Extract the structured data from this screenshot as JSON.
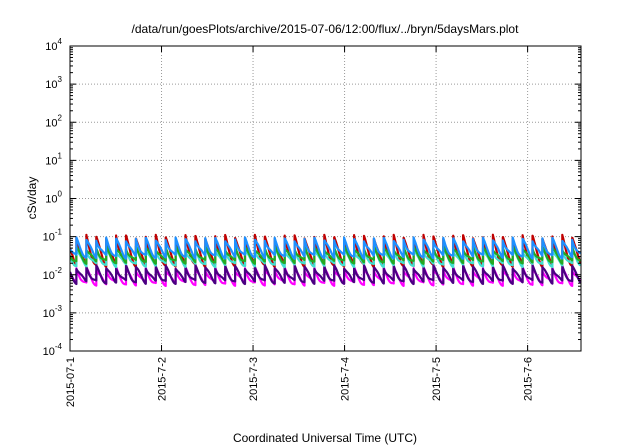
{
  "chart_data": {
    "type": "line",
    "title": "/data/run/goesPlots/archive/2015-07-06/12:00/flux/../bryn/5daysMars.plot",
    "xlabel": "Coordinated Universal Time (UTC)",
    "ylabel": "cSv/day",
    "yscale": "log",
    "ylim": [
      0.0001,
      10000
    ],
    "xlim": [
      "2015-07-01",
      "2015-07-06 14:00"
    ],
    "grid": true,
    "x_ticks": [
      "2015-07-1",
      "2015-7-2",
      "2015-7-3",
      "2015-7-4",
      "2015-7-5",
      "2015-7-6"
    ],
    "y_ticks": [
      {
        "base": "10",
        "exp": "-4"
      },
      {
        "base": "10",
        "exp": "-3"
      },
      {
        "base": "10",
        "exp": "-2"
      },
      {
        "base": "10",
        "exp": "-1"
      },
      {
        "base": "10",
        "exp": "0"
      },
      {
        "base": "10",
        "exp": "1"
      },
      {
        "base": "10",
        "exp": "2"
      },
      {
        "base": "10",
        "exp": "3"
      },
      {
        "base": "10",
        "exp": "4"
      }
    ],
    "pattern": {
      "sawtooth_period_hours": 2.6,
      "description_values": "each series rises sharply then decays once per period"
    },
    "series": [
      {
        "color": "#ff00ff",
        "peak": 0.014,
        "trough": 0.0058
      },
      {
        "color": "#c00000",
        "peak": 0.1,
        "trough": 0.018
      },
      {
        "color": "#4b0082",
        "peak": 0.016,
        "trough": 0.0065
      },
      {
        "color": "#40e0d0",
        "peak": 0.045,
        "trough": 0.018
      },
      {
        "color": "#22aa22",
        "peak": 0.05,
        "trough": 0.022
      },
      {
        "color": "#1e90ff",
        "peak": 0.085,
        "trough": 0.03
      }
    ]
  }
}
